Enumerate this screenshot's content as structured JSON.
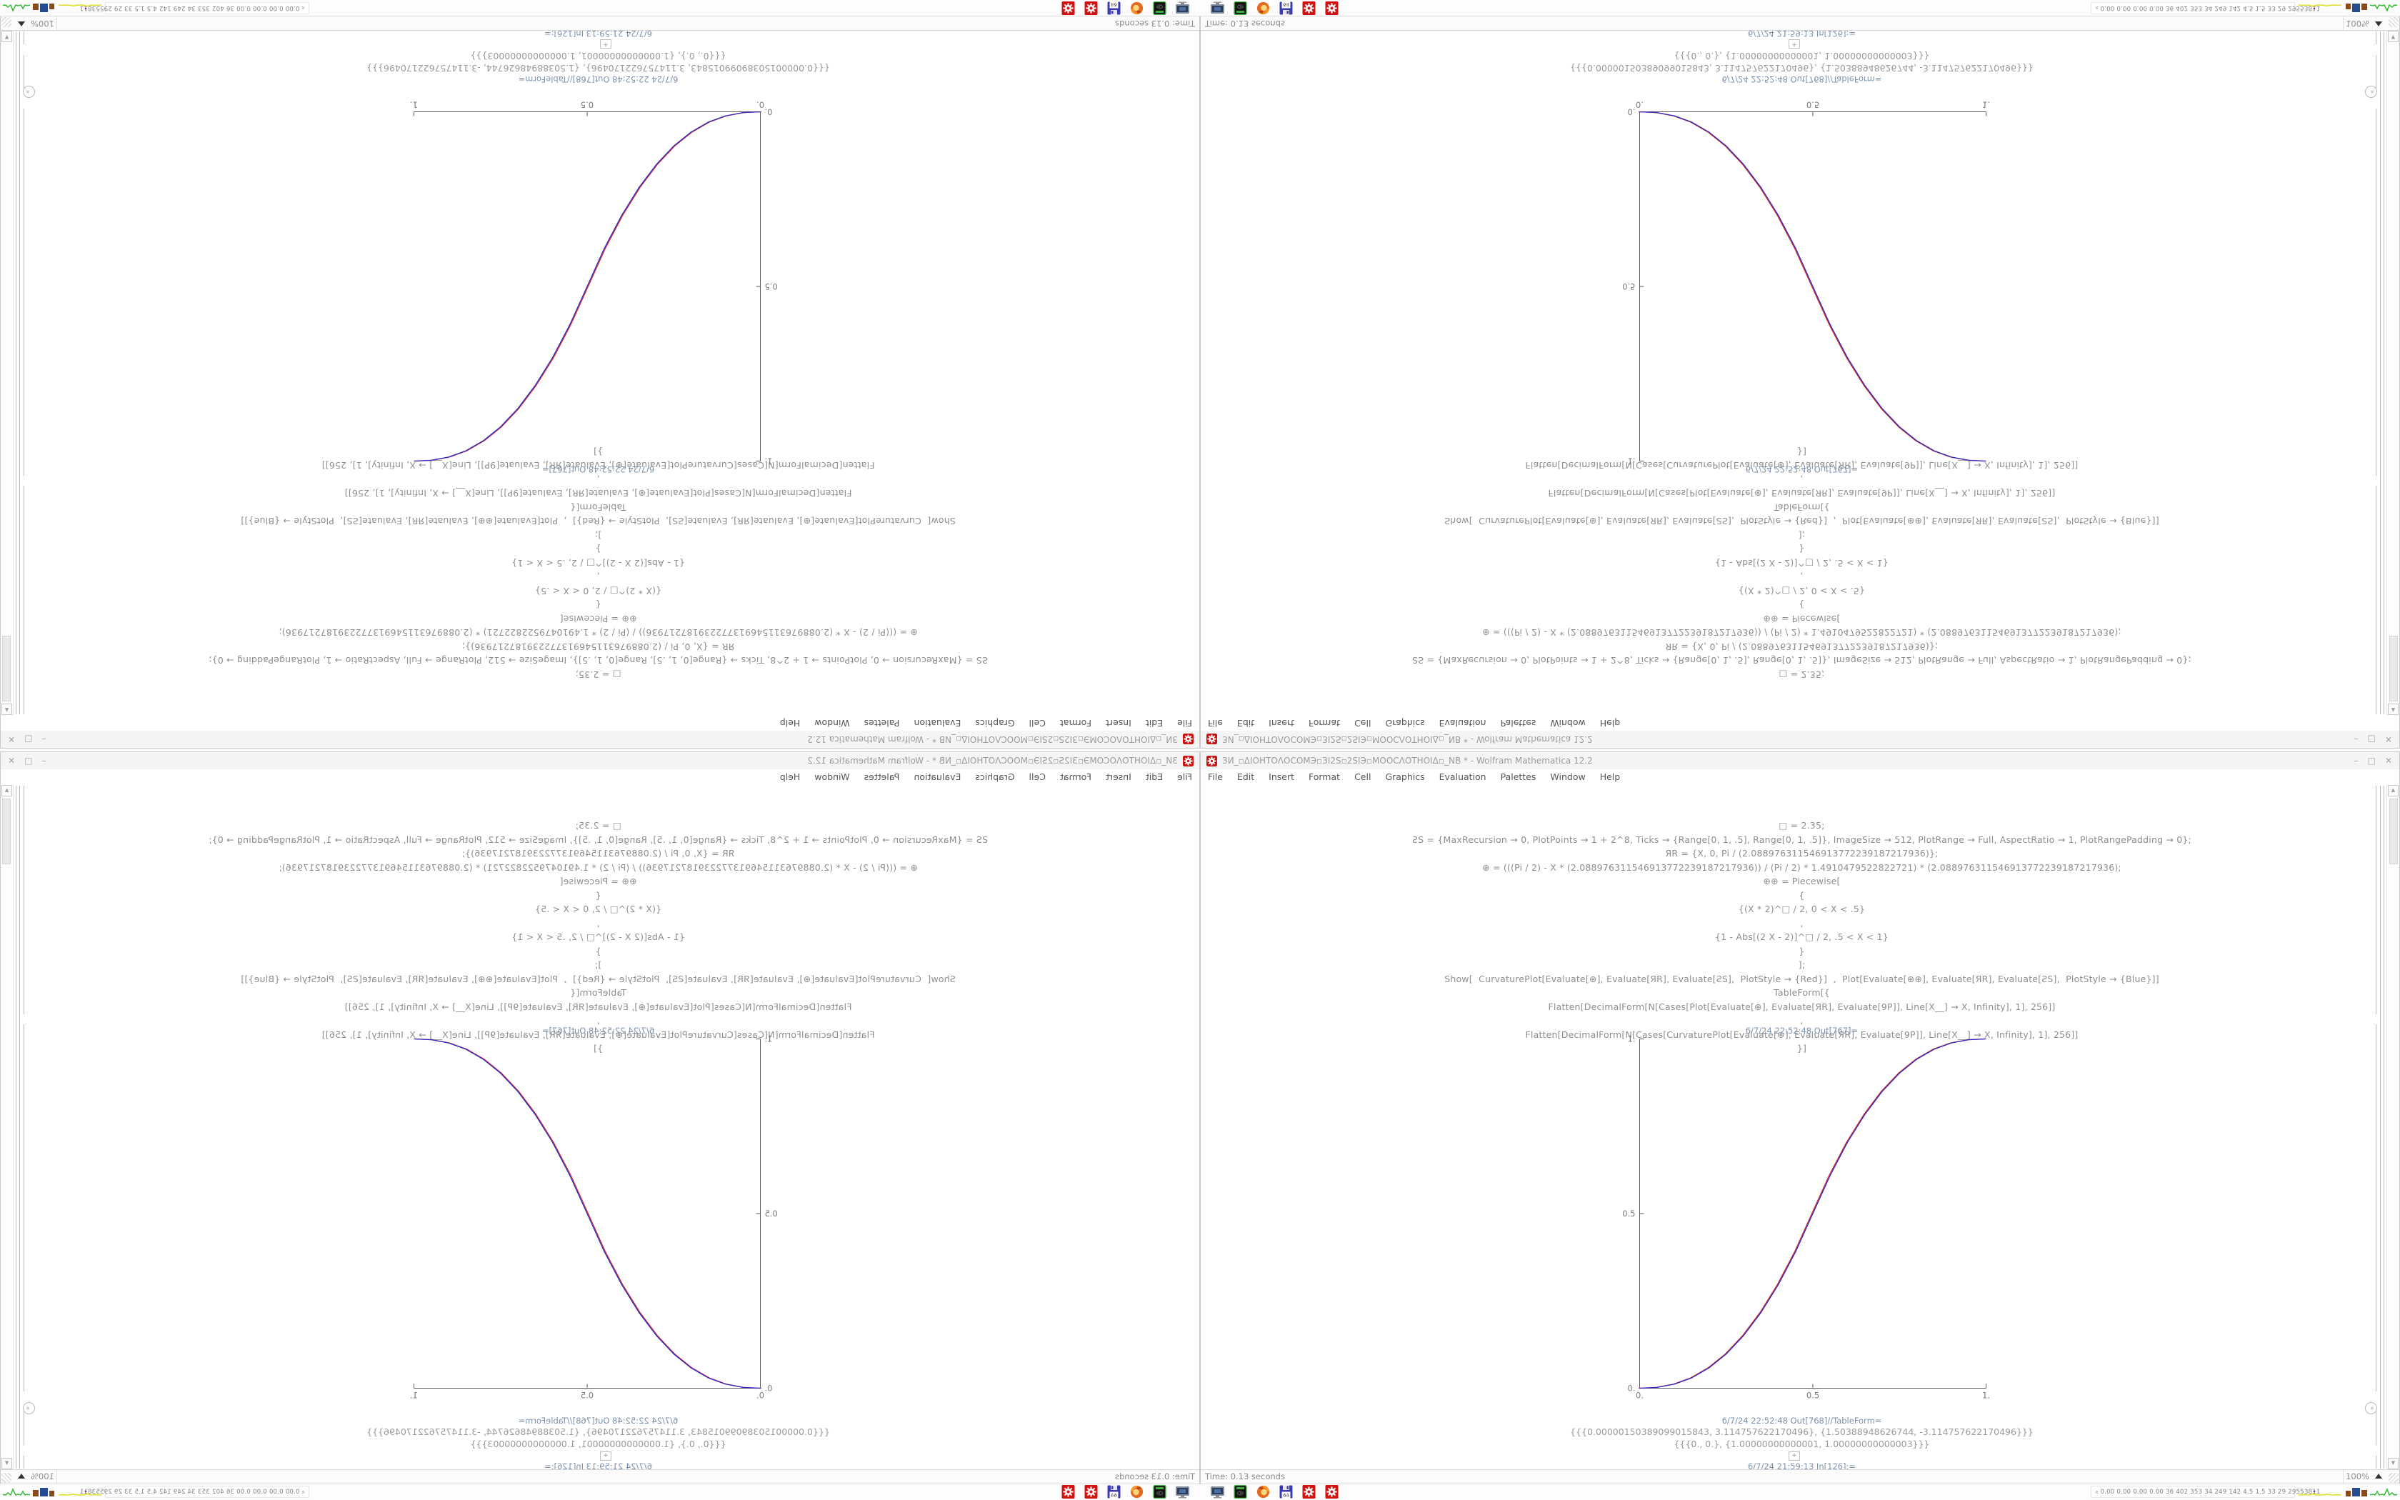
{
  "app": "Wolfram Mathematica 12.2",
  "quadrants": [
    {
      "position": "top-left",
      "orientation": "rotated-180"
    },
    {
      "position": "top-right",
      "orientation": "flipped-vertical"
    },
    {
      "position": "bottom-left",
      "orientation": "flipped-horizontal"
    },
    {
      "position": "bottom-right",
      "orientation": "normal"
    }
  ],
  "window": {
    "title": "ЗИ_▫ΔΙΟΗΤΟΛΟCOMЭ▫ЗІ2Ѕ▫2ЅІЭ▫MOOCΛΟΤΗΟΙΔ▫_NB * - Wolfram Mathematica 12.2",
    "icon": "mathematica-red-gear",
    "buttons": {
      "minimize": "–",
      "maximize": "□",
      "close": "✕"
    }
  },
  "menu": {
    "items": [
      "File",
      "Edit",
      "Insert",
      "Format",
      "Cell",
      "Graphics",
      "Evaluation",
      "Palettes",
      "Window",
      "Help"
    ]
  },
  "notebook": {
    "input_cell": {
      "lines": [
        "□ = 2.35;",
        "ƧS = {MaxRecursion → 0, PlotPoints → 1 + 2^8, Ticks → {Range[0, 1, .5], Range[0, 1, .5]}, ImageSize → 512, PlotRange → Full, AspectRatio → 1, PlotRangePadding → 0};",
        "ЯR = {X, 0, Pi / (2.088976311546913772239187217936)};",
        "⊕ = (((Pi / 2) - X * (2.088976311546913772239187217936)) / (Pi / 2) * 1.4910479522822721) * (2.088976311546913772239187217936);",
        "⊕⊕ = Piecewise[",
        "{",
        "{(X * 2)^□ / 2, 0 < X < .5}",
        ",",
        "{1 - Abs[(2 X - 2)]^□ / 2, .5 < X < 1}",
        "}",
        "];",
        "Show[  CurvaturePlot[Evaluate[⊕], Evaluate[ЯR], Evaluate[ƧS],  PlotStyle → {Red}]  ,  Plot[Evaluate[⊕⊕], Evaluate[ЯR], Evaluate[ƧS],  PlotStyle → {Blue}]]",
        "TableForm[{",
        "Flatten[DecimalForm[N[Cases[Plot[Evaluate[⊕], Evaluate[ЯR], Evaluate[9P]], Line[X__] → X, Infinity], 1], 256]]",
        ",",
        "Flatten[DecimalForm[N[Cases[CurvaturePlot[Evaluate[⊕], Evaluate[ЯR], Evaluate[9P]], Line[X__] → X, Infinity], 1], 256]]",
        "}]"
      ]
    },
    "out_plot": {
      "label": "6/7/24 22:52:48 Out[767]="
    },
    "out_table": {
      "label": "6/7/24 22:52:48 Out[768]//TableForm=",
      "rows": [
        "{{{0.00000150389099015843, 3.114757622170496}, {1.50388948626744, -3.114757622170496}}}",
        "{{{0., 0.}, {1.00000000000001, 1.00000000000003}}}"
      ]
    },
    "next_input": {
      "plus": "+",
      "label": "6/7/24 21:59:13 In[126]:="
    }
  },
  "chart_data": {
    "type": "line",
    "title": "6/7/24 22:52:48 Out[767]=",
    "function": "y = (2x)^2.35 / 2 for 0<x<0.5 ; y = 1 - Abs[2x-2]^2.35 / 2 for 0.5<x<1",
    "x": [
      0,
      0.05,
      0.1,
      0.15,
      0.2,
      0.25,
      0.3,
      0.35,
      0.4,
      0.45,
      0.5,
      0.55,
      0.6,
      0.65,
      0.7,
      0.75,
      0.8,
      0.85,
      0.9,
      0.95,
      1
    ],
    "series": [
      {
        "name": "CurvaturePlot ⊕",
        "color": "#d42a2a",
        "y": [
          0,
          0.0022,
          0.0114,
          0.0295,
          0.058,
          0.098,
          0.1505,
          0.2163,
          0.296,
          0.3903,
          0.5,
          0.6097,
          0.704,
          0.7837,
          0.8495,
          0.902,
          0.942,
          0.9705,
          0.9886,
          0.9978,
          1
        ]
      },
      {
        "name": "Plot ⊕⊕",
        "color": "#2a2ac4",
        "y": [
          0,
          0.0022,
          0.0114,
          0.0295,
          0.058,
          0.098,
          0.1505,
          0.2163,
          0.296,
          0.3903,
          0.5,
          0.6097,
          0.704,
          0.7837,
          0.8495,
          0.902,
          0.942,
          0.9705,
          0.9886,
          0.9978,
          1
        ]
      }
    ],
    "xlim": [
      0,
      1
    ],
    "ylim": [
      0,
      1
    ],
    "xticks": [
      0,
      0.5,
      1
    ],
    "xtick_labels": [
      "0.",
      "0.5",
      "1."
    ],
    "yticks": [
      0,
      0.5,
      1
    ],
    "ytick_labels": [
      "0.",
      "0.5",
      "1."
    ],
    "grid": false,
    "legend": "none",
    "axes": "left-and-bottom"
  },
  "statusbar": {
    "time": "Time: 0.13 seconds",
    "zoom_level": "100%"
  },
  "taskbar": {
    "icons": [
      "display-capture-icon",
      "power-switch-icon",
      "firefox-icon",
      "floppy-save-icon",
      "red-gear-app-icon",
      "red-gear-app-icon"
    ],
    "floppy_label": "64",
    "tray": {
      "expand_glyph": "«",
      "stats": "0.00 0.00 0.00 0.00  36  402  353  34  249  142  4.5  1.5  33  29  29553811"
    },
    "widgets": [
      "cpu-sparkline-yellow",
      "io-blocks",
      "net-sparkline-green"
    ]
  },
  "colors": {
    "curve_red": "#d42a2a",
    "curve_blue": "#2a2ac4",
    "cell_label_blue": "#7d93ab",
    "code_gray": "#8e8e8e",
    "axis": "#5a5a5a"
  }
}
